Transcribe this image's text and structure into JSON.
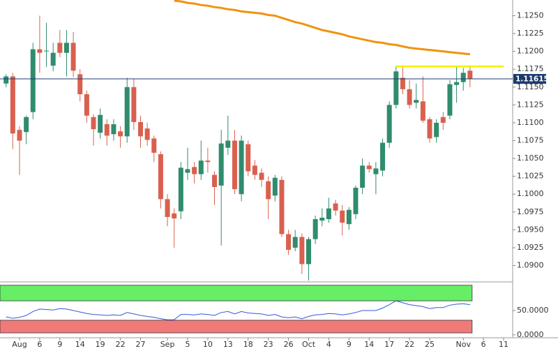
{
  "chart_data": [
    {
      "type": "candlestick",
      "categories": [
        null,
        null,
        "Aug",
        null,
        null,
        "6",
        null,
        null,
        "9",
        null,
        null,
        "14",
        null,
        null,
        "19",
        null,
        null,
        "22",
        null,
        null,
        "27",
        null,
        null,
        null,
        "Sep",
        null,
        null,
        "5",
        null,
        null,
        "10",
        null,
        null,
        "13",
        null,
        null,
        "18",
        null,
        null,
        "23",
        null,
        null,
        "26",
        null,
        null,
        "Oct",
        null,
        null,
        "4",
        null,
        null,
        "9",
        null,
        null,
        "14",
        null,
        null,
        "17",
        null,
        null,
        "22",
        null,
        null,
        "25",
        null,
        null,
        null,
        null,
        "Nov",
        null,
        null,
        "6",
        null,
        null,
        "11"
      ],
      "open": [
        1.1155,
        1.1165,
        1.109,
        1.1087,
        1.1115,
        1.1203,
        1.12,
        1.118,
        1.1212,
        1.1198,
        1.1212,
        1.1168,
        1.114,
        1.1108,
        1.1086,
        1.1098,
        1.1084,
        1.1088,
        1.1081,
        1.115,
        1.1101,
        1.1092,
        1.1078,
        1.1056,
        1.0993,
        1.0973,
        1.0976,
        1.103,
        1.1038,
        1.1028,
        1.1047,
        1.1027,
        1.1012,
        1.1065,
        1.1075,
        1.1,
        1.107,
        1.104,
        1.103,
        1.1018,
        1.0998,
        1.102,
        1.0944,
        1.0925,
        1.094,
        1.0902,
        1.0937,
        1.0963,
        1.0965,
        1.0987,
        1.0977,
        1.0958,
        1.0972,
        1.1009,
        1.104,
        1.1028,
        1.1033,
        1.1072,
        1.1125,
        1.1163,
        1.1147,
        1.1128,
        1.113,
        1.1105,
        1.108,
        1.1108,
        1.111,
        1.1153,
        1.1157,
        1.1173,
        null,
        null,
        null,
        null,
        null
      ],
      "high": [
        1.1168,
        1.117,
        1.1095,
        1.111,
        1.1212,
        1.125,
        1.124,
        1.1212,
        1.123,
        1.123,
        1.1227,
        1.1175,
        1.1145,
        1.1112,
        1.112,
        1.1105,
        1.1105,
        1.1095,
        1.1163,
        1.1162,
        1.111,
        1.11,
        1.1082,
        1.106,
        1.1,
        1.098,
        1.1045,
        1.1065,
        1.1045,
        1.1075,
        1.1065,
        1.1032,
        1.109,
        1.111,
        1.109,
        1.1082,
        1.1075,
        1.1048,
        1.1036,
        1.1025,
        1.1027,
        1.1025,
        1.095,
        1.095,
        1.0945,
        1.094,
        1.097,
        1.098,
        1.0995,
        1.0992,
        1.0985,
        1.0982,
        1.1012,
        1.105,
        1.1045,
        1.1045,
        1.1078,
        1.113,
        1.1179,
        1.1179,
        1.116,
        1.1155,
        1.1165,
        1.1108,
        1.1105,
        1.1115,
        1.116,
        1.1178,
        1.1177,
        1.118,
        null,
        null,
        null,
        null,
        null
      ],
      "low": [
        1.115,
        1.1063,
        1.1027,
        1.107,
        1.1105,
        1.117,
        1.1178,
        1.1172,
        1.1192,
        1.1165,
        1.1164,
        1.113,
        1.11,
        1.1068,
        1.1078,
        1.1068,
        1.1075,
        1.1065,
        1.1072,
        1.109,
        1.1065,
        1.1068,
        1.1045,
        1.098,
        1.0955,
        1.0925,
        1.0965,
        1.102,
        1.1015,
        1.102,
        1.103,
        1.0985,
        1.0928,
        1.1055,
        1.1,
        1.099,
        1.1025,
        1.102,
        1.101,
        1.0965,
        1.099,
        1.094,
        1.0915,
        1.092,
        1.0888,
        1.0879,
        1.093,
        1.0955,
        1.096,
        1.097,
        1.0942,
        1.095,
        1.0965,
        1.1,
        1.103,
        1.1,
        1.1025,
        1.1065,
        1.112,
        1.114,
        1.112,
        1.112,
        1.11,
        1.1072,
        1.1072,
        1.109,
        1.1105,
        1.1128,
        1.1145,
        1.115,
        null,
        null,
        null,
        null,
        null
      ],
      "close": [
        1.1165,
        1.1085,
        1.1075,
        1.1108,
        1.1203,
        1.1198,
        1.1201,
        1.1198,
        1.1198,
        1.1212,
        1.1173,
        1.114,
        1.111,
        1.1091,
        1.1111,
        1.1082,
        1.1098,
        1.1081,
        1.115,
        1.1101,
        1.1081,
        1.1076,
        1.1058,
        1.0993,
        1.0968,
        1.0966,
        1.1037,
        1.1035,
        1.1028,
        1.1047,
        1.1045,
        1.101,
        1.1071,
        1.1075,
        1.1007,
        1.1075,
        1.1032,
        1.1027,
        1.102,
        1.0993,
        1.1023,
        1.0944,
        1.0922,
        1.094,
        1.0902,
        1.0937,
        1.0965,
        1.0967,
        1.098,
        1.0977,
        1.096,
        1.0978,
        1.1009,
        1.104,
        1.1035,
        1.1036,
        1.1072,
        1.1125,
        1.1172,
        1.1147,
        1.1125,
        1.1132,
        1.1103,
        1.1078,
        1.11,
        1.11,
        1.1154,
        1.1157,
        1.117,
        1.11615,
        null,
        null,
        null,
        null,
        null
      ],
      "up_color": "#2f8c6d",
      "down_color": "#d9604f",
      "overlays": [
        {
          "color": "#f0930f",
          "values": [
            null,
            null,
            null,
            null,
            null,
            null,
            null,
            null,
            null,
            null,
            null,
            null,
            null,
            null,
            null,
            null,
            null,
            null,
            null,
            null,
            null,
            null,
            null,
            null,
            null,
            1.1271,
            1.127,
            1.1268,
            1.1267,
            1.1265,
            1.1264,
            1.1262,
            1.1261,
            1.1259,
            1.1258,
            1.1256,
            1.1255,
            1.1254,
            1.1253,
            1.1251,
            1.125,
            1.1247,
            1.1244,
            1.1241,
            1.1239,
            1.1236,
            1.1233,
            1.123,
            1.1228,
            1.1226,
            1.1224,
            1.1221,
            1.1219,
            1.1217,
            1.1215,
            1.1213,
            1.1212,
            1.121,
            1.1209,
            1.1207,
            1.1205,
            1.1204,
            1.1203,
            1.1202,
            1.1201,
            1.12,
            1.1199,
            1.1198,
            1.1197,
            1.1196,
            null,
            null,
            null,
            null,
            null
          ]
        },
        {
          "color": "#f5f000",
          "values": [
            null,
            null,
            null,
            null,
            null,
            null,
            null,
            null,
            null,
            null,
            null,
            null,
            null,
            null,
            null,
            null,
            null,
            null,
            null,
            null,
            null,
            null,
            null,
            null,
            null,
            null,
            null,
            null,
            null,
            null,
            null,
            null,
            null,
            null,
            null,
            null,
            null,
            null,
            null,
            null,
            null,
            null,
            null,
            null,
            null,
            null,
            null,
            null,
            null,
            null,
            null,
            null,
            null,
            null,
            null,
            null,
            null,
            null,
            1.1179,
            1.1179,
            1.1179,
            1.1179,
            1.1179,
            1.1179,
            1.1179,
            1.1179,
            1.1179,
            1.1179,
            1.1179,
            1.1179,
            1.1179,
            1.1179,
            1.1179,
            1.1179,
            1.1179
          ]
        }
      ],
      "last_price": 1.11615,
      "last_price_color": "#1c3a6e",
      "ylim": [
        1.0879,
        1.1272
      ],
      "yticks": [
        {
          "value": 1.09,
          "label": "1.0900"
        },
        {
          "value": 1.0925,
          "label": "1.0925"
        },
        {
          "value": 1.095,
          "label": "1.0950"
        },
        {
          "value": 1.0975,
          "label": "1.0975"
        },
        {
          "value": 1.1,
          "label": "1.1000"
        },
        {
          "value": 1.1025,
          "label": "1.1025"
        },
        {
          "value": 1.105,
          "label": "1.1050"
        },
        {
          "value": 1.1075,
          "label": "1.1075"
        },
        {
          "value": 1.11,
          "label": "1.1100"
        },
        {
          "value": 1.1125,
          "label": "1.1125"
        },
        {
          "value": 1.115,
          "label": "1.1150"
        },
        {
          "value": 1.1175,
          "label": "1.1175"
        },
        {
          "value": 1.12,
          "label": "1.1200"
        },
        {
          "value": 1.1225,
          "label": "1.1225"
        },
        {
          "value": 1.125,
          "label": "1.1250"
        }
      ]
    },
    {
      "type": "line",
      "values": [
        37,
        34,
        36,
        40,
        48,
        53,
        52,
        51,
        54,
        53,
        50,
        47,
        44,
        42,
        41,
        40,
        41,
        40,
        46,
        43,
        40,
        38,
        36,
        33,
        31,
        31,
        42,
        42,
        41,
        43,
        42,
        40,
        46,
        48,
        43,
        48,
        45,
        44,
        43,
        40,
        42,
        37,
        35,
        37,
        33,
        38,
        41,
        42,
        44,
        43,
        41,
        43,
        46,
        50,
        50,
        50,
        55,
        62,
        70,
        66,
        62,
        60,
        58,
        54,
        56,
        56,
        61,
        63,
        64,
        62,
        null,
        null,
        null,
        null,
        null
      ],
      "color": "#3558d8",
      "bands": [
        {
          "from": 70,
          "to": 102,
          "color": "#66ee66"
        },
        {
          "from": 4,
          "to": 30,
          "color": "#f07a7a"
        }
      ],
      "ylim": [
        -6,
        106
      ],
      "yticks": [
        {
          "value": 0,
          "label": "0.0000"
        },
        {
          "value": 50,
          "label": "50.0000"
        }
      ]
    }
  ]
}
